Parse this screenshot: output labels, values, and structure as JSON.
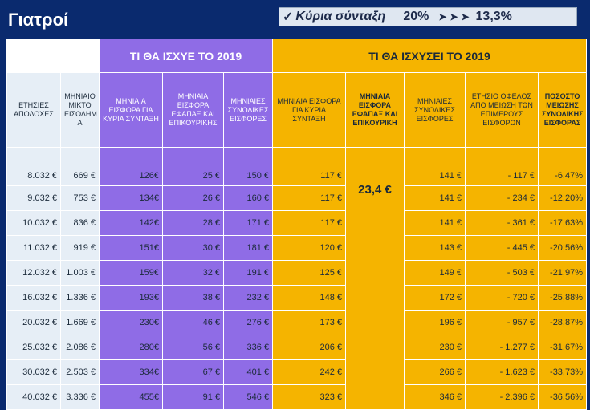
{
  "title": "Γιατροί",
  "banner": {
    "check": "✓",
    "label": "Κύρια σύνταξη",
    "from": "20%",
    "arrows": "➤➤➤",
    "to": "13,3%"
  },
  "groups": {
    "before": "ΤΙ ΘΑ ΙΣΧΥΕ ΤΟ 2019",
    "after": "ΤΙ ΘΑ ΙΣΧΥΣΕΙ ΤΟ 2019"
  },
  "headers": {
    "annual": "ΕΤΗΣΙΕΣ ΑΠΟΔΟΧΕΣ",
    "monthly": "ΜΗΝΙΑΙΟ ΜΙΚΤΟ ΕΙΣΟΔΗΜ Α",
    "old_main": "ΜΗΝΙΑΙΑ ΕΙΣΦΟΡΑ ΓΙΑ ΚΥΡΙΑ ΣΥΝΤΑΞΗ",
    "old_lump": "ΜΗΝΙΑΙΑ ΕΙΣΦΟΡΑ ΕΦΑΠΑΞ ΚΑΙ ΕΠΙΚΟΥΡΙΚΗΣ",
    "old_total": "ΜΗΝΙΑΙΕΣ ΣΥΝΟΛΙΚΕΣ ΕΙΣΦΟΡΕΣ",
    "new_main": "ΜΗΝΙΑΙΑ ΕΙΣΦΟΡΑ ΓΙΑ ΚΥΡΙΑ ΣΥΝΤΑΞΗ",
    "new_lump": "ΜΗΝΙΑΙΑ ΕΙΣΦΟΡΑ ΕΦΑΠΑΞ ΚΑΙ ΕΠΙΚΟΥΡΙΚΗ",
    "new_total": "ΜΗΝΙΑΙΕΣ ΣΥΝΟΛΙΚΕΣ ΕΙΣΦΟΡΕΣ",
    "benefit": "ΕΤΗΣΙΟ ΟΦΕΛΟΣ ΑΠΟ ΜΕΙΩΣΗ ΤΩΝ ΕΠΙΜΕΡΟΥΣ ΕΙΣΦΟΡΩΝ",
    "reduction": "ΠΟΣΟΣΤΟ ΜΕΙΩΣΗΣ ΣΥΝΟΛΙΚΗΣ ΕΙΣΦΟΡΑΣ"
  },
  "merged_value": "23,4 €",
  "rows": [
    {
      "annual": "8.032 €",
      "monthly": "669 €",
      "old_main": "126€",
      "old_lump": "25 €",
      "old_total": "150 €",
      "new_main": "117 €",
      "new_total": "141 €",
      "benefit": "-  117 €",
      "reduction": "-6,47%"
    },
    {
      "annual": "9.032 €",
      "monthly": "753 €",
      "old_main": "134€",
      "old_lump": "26 €",
      "old_total": "160 €",
      "new_main": "117 €",
      "new_total": "141 €",
      "benefit": "-  234 €",
      "reduction": "-12,20%"
    },
    {
      "annual": "10.032 €",
      "monthly": "836 €",
      "old_main": "142€",
      "old_lump": "28 €",
      "old_total": "171 €",
      "new_main": "117 €",
      "new_total": "141 €",
      "benefit": "- 361 €",
      "reduction": "-17,63%"
    },
    {
      "annual": "11.032 €",
      "monthly": "919 €",
      "old_main": "151€",
      "old_lump": "30 €",
      "old_total": "181 €",
      "new_main": "120 €",
      "new_total": "143 €",
      "benefit": "- 445 €",
      "reduction": "-20,56%"
    },
    {
      "annual": "12.032 €",
      "monthly": "1.003 €",
      "old_main": "159€",
      "old_lump": "32 €",
      "old_total": "191 €",
      "new_main": "125 €",
      "new_total": "149 €",
      "benefit": "- 503 €",
      "reduction": "-21,97%"
    },
    {
      "annual": "16.032 €",
      "monthly": "1.336 €",
      "old_main": "193€",
      "old_lump": "38 €",
      "old_total": "232 €",
      "new_main": "148 €",
      "new_total": "172 €",
      "benefit": "- 720 €",
      "reduction": "-25,88%"
    },
    {
      "annual": "20.032 €",
      "monthly": "1.669 €",
      "old_main": "230€",
      "old_lump": "46 €",
      "old_total": "276 €",
      "new_main": "173 €",
      "new_total": "196 €",
      "benefit": "- 957 €",
      "reduction": "-28,87%"
    },
    {
      "annual": "25.032 €",
      "monthly": "2.086 €",
      "old_main": "280€",
      "old_lump": "56 €",
      "old_total": "336 €",
      "new_main": "206 €",
      "new_total": "230 €",
      "benefit": "- 1.277 €",
      "reduction": "-31,67%"
    },
    {
      "annual": "30.032 €",
      "monthly": "2.503 €",
      "old_main": "334€",
      "old_lump": "67 €",
      "old_total": "401 €",
      "new_main": "242 €",
      "new_total": "266 €",
      "benefit": "- 1.623 €",
      "reduction": "-33,73%"
    },
    {
      "annual": "40.032 €",
      "monthly": "3.336 €",
      "old_main": "455€",
      "old_lump": "91 €",
      "old_total": "546 €",
      "new_main": "323 €",
      "new_total": "346 €",
      "benefit": "-  2.396 €",
      "reduction": "-36,56%"
    }
  ]
}
